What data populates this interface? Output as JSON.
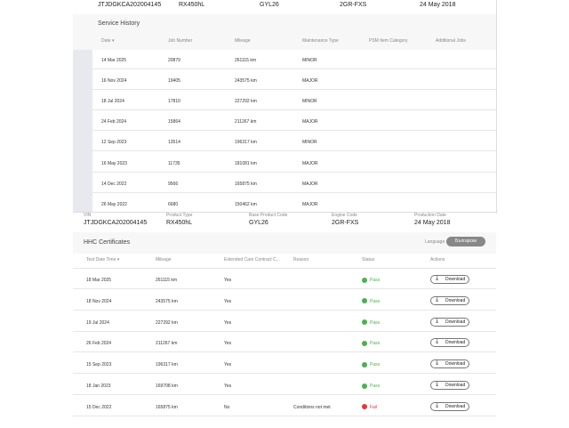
{
  "top_panel": {
    "vehicle": [
      "JTJDGKCA202004145",
      "RX450hL",
      "GYL26",
      "2GR-FXS",
      "24 May 2018"
    ],
    "title": "Service History",
    "columns": [
      "Date ▾",
      "Job Number",
      "Mileage",
      "Maintenance Type",
      "PSM Item Category",
      "Additional Jobs"
    ],
    "rows": [
      [
        "14 Mar 2025",
        "20879",
        "261115 km",
        "MINOR"
      ],
      [
        "16 Nov 2024",
        "19405",
        "243575 km",
        "MAJOR"
      ],
      [
        "18 Jul 2024",
        "17810",
        "227292 km",
        "MINOR"
      ],
      [
        "24 Feb 2024",
        "15864",
        "211267 km",
        "MAJOR"
      ],
      [
        "12 Sep 2023",
        "13514",
        "196317 km",
        "MINOR"
      ],
      [
        "16 May 2023",
        "11735",
        "181081 km",
        "MAJOR"
      ],
      [
        "14 Dec 2022",
        "9566",
        "165875 km",
        "MAJOR"
      ],
      [
        "26 May 2022",
        "6680",
        "150462 km",
        "MAJOR"
      ]
    ]
  },
  "bottom_panel": {
    "vehicle_labels": [
      "VIN",
      "Product Type",
      "Base Product Code",
      "Engine Code",
      "Production Date"
    ],
    "vehicle": [
      "JTJDGKCA202004145",
      "RX450hL",
      "GYL26",
      "2GR-FXS",
      "24 May 2018"
    ],
    "title": "HHC Certificates",
    "language_label": "Language",
    "language_value": "Български",
    "columns": [
      "Test Date Time ▾",
      "Mileage",
      "Extended Care Contract C...",
      "Reason",
      "Status",
      "Actions"
    ],
    "rows": [
      [
        "18 Mar 2025",
        "261115 km",
        "Yes",
        "",
        "Pass",
        "Download"
      ],
      [
        "18 Nov 2024",
        "243575 km",
        "Yes",
        "",
        "Pass",
        "Download"
      ],
      [
        "19 Jul 2024",
        "227292 km",
        "Yes",
        "",
        "Pass",
        "Download"
      ],
      [
        "26 Feb 2024",
        "211267 km",
        "Yes",
        "",
        "Pass",
        "Download"
      ],
      [
        "15 Sep 2023",
        "196317 km",
        "Yes",
        "",
        "Pass",
        "Download"
      ],
      [
        "18 Jan 2023",
        "169708 km",
        "Yes",
        "",
        "Pass",
        "Download"
      ],
      [
        "15 Dec 2022",
        "165875 km",
        "No",
        "Conditions not met",
        "Fail",
        "Download"
      ]
    ]
  }
}
